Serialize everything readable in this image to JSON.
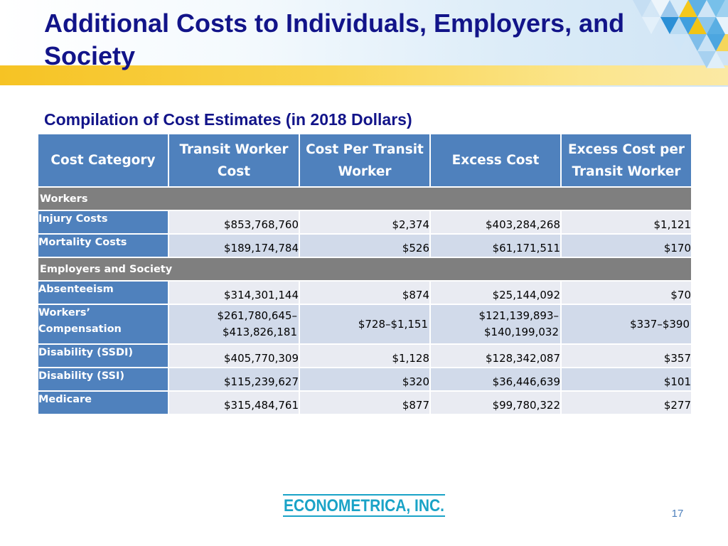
{
  "slide": {
    "title": "Additional Costs to Individuals, Employers, and Society",
    "subtitle": "Compilation of Cost Estimates (in 2018 Dollars)",
    "page_number": "17",
    "logo_text": "ECONOMETRICA, INC."
  },
  "table": {
    "headers": [
      "Cost Category",
      "Transit Worker Cost",
      "Cost Per Transit Worker",
      "Excess Cost",
      "Excess Cost per Transit Worker"
    ],
    "sections": [
      {
        "label": "Workers",
        "rows": [
          {
            "category": "Injury Costs",
            "transit_worker_cost": "$853,768,760",
            "cost_per_transit_worker": "$2,374",
            "excess_cost": "$403,284,268",
            "excess_cost_per_transit_worker": "$1,121"
          },
          {
            "category": "Mortality Costs",
            "transit_worker_cost": "$189,174,784",
            "cost_per_transit_worker": "$526",
            "excess_cost": "$61,171,511",
            "excess_cost_per_transit_worker": "$170"
          }
        ]
      },
      {
        "label": "Employers and Society",
        "rows": [
          {
            "category": "Absenteeism",
            "transit_worker_cost": "$314,301,144",
            "cost_per_transit_worker": "$874",
            "excess_cost": "$25,144,092",
            "excess_cost_per_transit_worker": "$70"
          },
          {
            "category": "Workers’ Compensation",
            "transit_worker_cost": "$261,780,645– $413,826,181",
            "cost_per_transit_worker": "$728–$1,151",
            "excess_cost": "$121,139,893– $140,199,032",
            "excess_cost_per_transit_worker": "$337–$390"
          },
          {
            "category": "Disability (SSDI)",
            "transit_worker_cost": "$405,770,309",
            "cost_per_transit_worker": "$1,128",
            "excess_cost": "$128,342,087",
            "excess_cost_per_transit_worker": "$357"
          },
          {
            "category": "Disability (SSI)",
            "transit_worker_cost": "$115,239,627",
            "cost_per_transit_worker": "$320",
            "excess_cost": "$36,446,639",
            "excess_cost_per_transit_worker": "$101"
          },
          {
            "category": "Medicare",
            "transit_worker_cost": "$315,484,761",
            "cost_per_transit_worker": "$877",
            "excess_cost": "$99,780,322",
            "excess_cost_per_transit_worker": "$277"
          }
        ]
      }
    ]
  },
  "colors": {
    "title": "#121489",
    "header_fill": "#4f81bd",
    "section_fill": "#7f7f7f",
    "row_fill_light": "#e9ebf2",
    "row_fill_dark": "#d1daea",
    "banner_gold": "#f6c324",
    "logo_teal": "#1aa3c7"
  }
}
